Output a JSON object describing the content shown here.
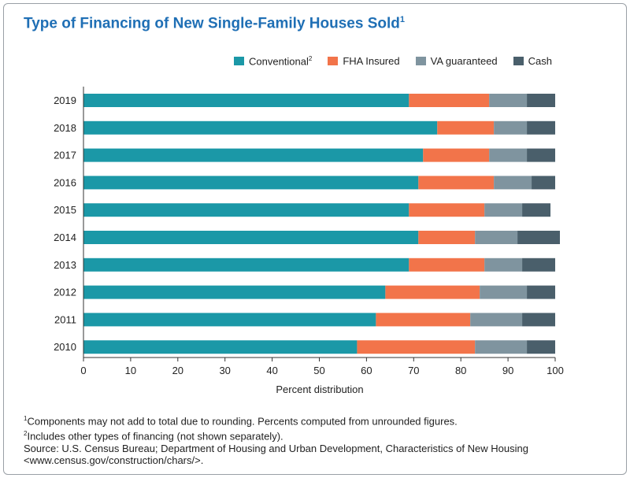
{
  "title": "Type of Financing of New Single-Family Houses Sold",
  "title_marker": "1",
  "chart_data": {
    "type": "bar",
    "orientation": "horizontal",
    "stacked": true,
    "categories": [
      "2019",
      "2018",
      "2017",
      "2016",
      "2015",
      "2014",
      "2013",
      "2012",
      "2011",
      "2010"
    ],
    "series": [
      {
        "name": "Conventional",
        "marker": "2",
        "color": "#1b98a7",
        "values": [
          69,
          75,
          72,
          71,
          69,
          71,
          69,
          64,
          62,
          58
        ]
      },
      {
        "name": "FHA Insured",
        "color": "#f2744a",
        "values": [
          17,
          12,
          14,
          16,
          16,
          12,
          16,
          20,
          20,
          25
        ]
      },
      {
        "name": "VA guaranteed",
        "color": "#7f949f",
        "values": [
          8,
          7,
          8,
          8,
          8,
          9,
          8,
          10,
          11,
          11
        ]
      },
      {
        "name": "Cash",
        "color": "#4a5f6b",
        "values": [
          6,
          6,
          6,
          5,
          6,
          9,
          7,
          6,
          7,
          6
        ]
      }
    ],
    "xlabel": "Percent distribution",
    "xlim": [
      0,
      100
    ],
    "xticks": [
      0,
      10,
      20,
      30,
      40,
      50,
      60,
      70,
      80,
      90,
      100
    ],
    "grid": false,
    "legend_position": "top-right"
  },
  "footnotes": [
    {
      "marker": "1",
      "text": "Components may not add to total due to rounding. Percents computed from unrounded figures."
    },
    {
      "marker": "2",
      "text": "Includes other types of financing (not shown separately)."
    }
  ],
  "source_lines": [
    "Source: U.S. Census Bureau; Department of Housing and Urban Development, Characteristics of New Housing",
    "<www.census.gov/construction/chars/>."
  ]
}
